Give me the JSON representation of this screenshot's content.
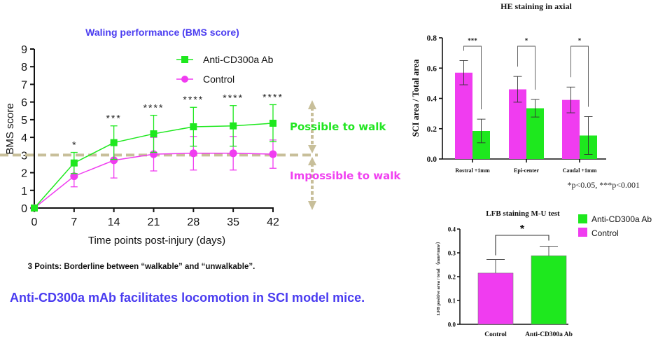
{
  "colors": {
    "green": "#1ee81e",
    "magenta": "#f03cf0",
    "blue_title": "#4a3cf0",
    "dash": "#c8bf9a",
    "possible_text": "#22e622",
    "impossible_text": "#f040f0"
  },
  "chart_data": [
    {
      "id": "bms",
      "type": "line",
      "title": "Waling performance (BMS score)",
      "xlabel": "Time points post-injury  (days)",
      "ylabel": "BMS score",
      "x": [
        0,
        7,
        14,
        21,
        28,
        35,
        42
      ],
      "x_ticks": [
        "0",
        "7",
        "14",
        "21",
        "28",
        "35",
        "42"
      ],
      "y_ticks": [
        "0",
        "1",
        "2",
        "3",
        "4",
        "5",
        "6",
        "7",
        "8",
        "9"
      ],
      "ylim": [
        0,
        9
      ],
      "xlim": [
        0,
        42
      ],
      "legend_position": "top-right",
      "series": [
        {
          "name": "Anti-CD300a Ab",
          "marker": "square",
          "values": [
            0,
            2.55,
            3.7,
            4.2,
            4.6,
            4.65,
            4.8
          ],
          "errors": [
            0,
            0.6,
            0.95,
            1.05,
            1.1,
            1.15,
            1.05
          ]
        },
        {
          "name": "Control",
          "marker": "circle",
          "values": [
            0,
            1.8,
            2.7,
            3.05,
            3.1,
            3.1,
            3.05
          ],
          "errors": [
            0,
            0.6,
            1.0,
            0.95,
            0.95,
            0.95,
            0.8
          ]
        }
      ],
      "significance": [
        "",
        "*",
        "***",
        "****",
        "****",
        "****",
        "****"
      ],
      "reference_line": 3,
      "annotations": {
        "above": "Possible to walk",
        "below": "Impossible to walk"
      },
      "footnote": "3 Points: Borderline between “walkable” and “unwalkable”."
    },
    {
      "id": "he",
      "type": "bar",
      "title": "HE staining in axial",
      "xlabel": "",
      "ylabel": "SCI area / Total area",
      "categories": [
        "Rostral +1mm",
        "Epi-center",
        "Caudal +1mm"
      ],
      "y_ticks": [
        "0.0",
        "0.2",
        "0.4",
        "0.6",
        "0.8"
      ],
      "ylim": [
        0,
        0.8
      ],
      "series": [
        {
          "name": "Control",
          "values": [
            0.57,
            0.46,
            0.39
          ],
          "errors": [
            0.08,
            0.085,
            0.085
          ]
        },
        {
          "name": "Anti-CD300a Ab",
          "values": [
            0.185,
            0.335,
            0.155
          ],
          "errors": [
            0.078,
            0.058,
            0.125
          ]
        }
      ],
      "significance": [
        "***",
        "*",
        "*"
      ],
      "footnote": "*p<0.05, ***p<0.001"
    },
    {
      "id": "lfb",
      "type": "bar",
      "title": "LFB staining  M-U test",
      "xlabel": "",
      "ylabel": "LFB positive area / total （mm²/mm²）",
      "categories": [
        "Control",
        "Anti-CD300a Ab"
      ],
      "y_ticks": [
        "0.0",
        "0.1",
        "0.2",
        "0.3",
        "0.4"
      ],
      "ylim": [
        0,
        0.4
      ],
      "values": [
        0.215,
        0.288
      ],
      "errors": [
        0.057,
        0.04
      ],
      "significance": "*",
      "legend_position": "right",
      "legend": [
        "Anti-CD300a Ab",
        "Control"
      ]
    }
  ],
  "conclusion": "Anti-CD300a mAb facilitates locomotion in SCI model mice."
}
